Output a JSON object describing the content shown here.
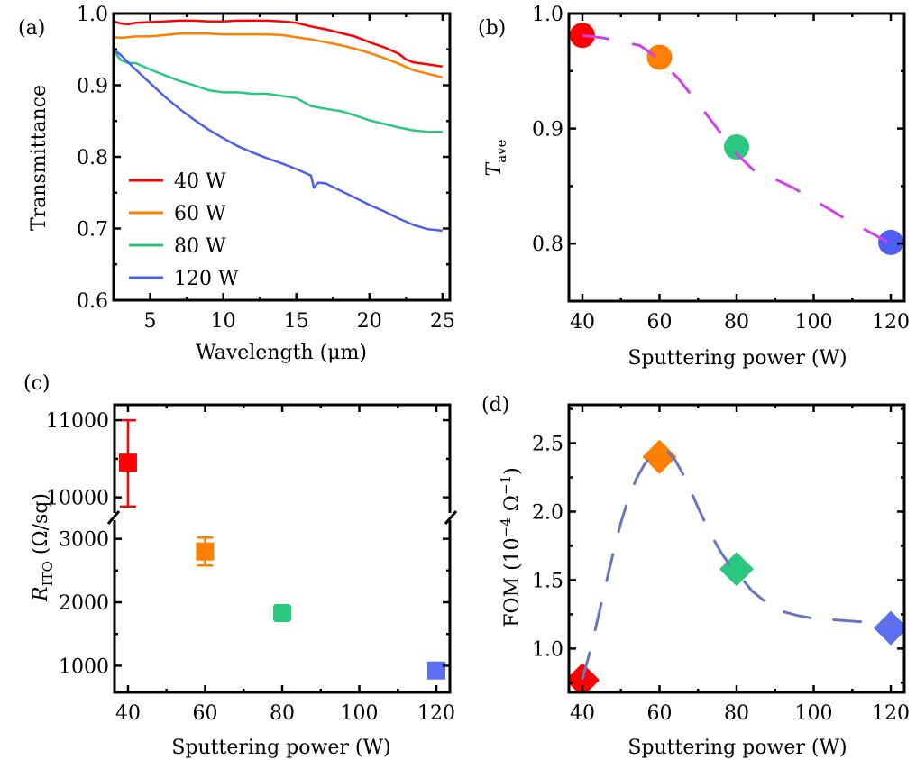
{
  "chart_data": [
    {
      "id": "a",
      "panel_label": "(a)",
      "type": "line",
      "xlabel": "Wavelength (μm)",
      "ylabel": "Transmittance",
      "xlim": [
        2.5,
        25.5
      ],
      "ylim": [
        0.6,
        1.0
      ],
      "xticks": [
        5,
        10,
        15,
        20,
        25
      ],
      "xtick_labels": [
        "5",
        "10",
        "15",
        "20",
        "25"
      ],
      "yticks": [
        0.6,
        0.7,
        0.8,
        0.9,
        1.0
      ],
      "ytick_labels": [
        "0.6",
        "0.7",
        "0.8",
        "0.9",
        "1.0"
      ],
      "legend_position": "bottom-left",
      "series": [
        {
          "name": "40 W",
          "color": "#ff0000",
          "x": [
            2.5,
            3.0,
            3.5,
            4.0,
            5,
            6,
            7,
            8,
            9,
            10,
            11,
            12,
            13,
            14,
            15,
            16,
            17,
            18,
            19,
            20,
            21,
            22,
            22.5,
            23,
            24,
            25
          ],
          "y": [
            0.989,
            0.986,
            0.985,
            0.987,
            0.988,
            0.989,
            0.99,
            0.99,
            0.989,
            0.989,
            0.99,
            0.99,
            0.99,
            0.989,
            0.987,
            0.982,
            0.978,
            0.973,
            0.968,
            0.96,
            0.953,
            0.944,
            0.936,
            0.932,
            0.929,
            0.926
          ]
        },
        {
          "name": "60 W",
          "color": "#ff7f00",
          "x": [
            2.5,
            3.0,
            3.5,
            4.0,
            5,
            6,
            7,
            8,
            9,
            10,
            11,
            12,
            13,
            14,
            15,
            16,
            17,
            18,
            19,
            20,
            21,
            22,
            23,
            24,
            25
          ],
          "y": [
            0.967,
            0.966,
            0.967,
            0.968,
            0.968,
            0.97,
            0.972,
            0.972,
            0.972,
            0.971,
            0.971,
            0.971,
            0.971,
            0.97,
            0.967,
            0.964,
            0.96,
            0.956,
            0.951,
            0.945,
            0.938,
            0.93,
            0.921,
            0.916,
            0.911
          ]
        },
        {
          "name": "80 W",
          "color": "#2ac87e",
          "x": [
            2.5,
            3.0,
            3.5,
            4.0,
            5,
            6,
            7,
            8,
            9,
            10,
            11,
            12,
            13,
            14,
            15,
            16,
            17,
            18,
            19,
            20,
            21,
            22,
            23,
            24,
            25
          ],
          "y": [
            0.948,
            0.935,
            0.931,
            0.931,
            0.922,
            0.914,
            0.906,
            0.9,
            0.893,
            0.89,
            0.89,
            0.888,
            0.888,
            0.885,
            0.882,
            0.871,
            0.867,
            0.864,
            0.858,
            0.851,
            0.846,
            0.841,
            0.837,
            0.835,
            0.835
          ]
        },
        {
          "name": "120 W",
          "color": "#4e5ef5",
          "x": [
            2.5,
            3.0,
            3.5,
            4.0,
            5,
            6,
            7,
            8,
            9,
            10,
            11,
            12,
            13,
            14,
            15,
            16,
            16.2,
            16.5,
            17,
            18,
            19,
            20,
            21,
            22,
            23,
            24,
            25
          ],
          "y": [
            0.95,
            0.942,
            0.932,
            0.922,
            0.903,
            0.884,
            0.867,
            0.852,
            0.838,
            0.826,
            0.815,
            0.806,
            0.798,
            0.791,
            0.783,
            0.774,
            0.757,
            0.764,
            0.763,
            0.753,
            0.743,
            0.733,
            0.724,
            0.714,
            0.705,
            0.699,
            0.697
          ]
        }
      ]
    },
    {
      "id": "b",
      "panel_label": "(b)",
      "type": "scatter",
      "xlabel": "Sputtering power (W)",
      "ylabel": "T",
      "ylabel_sub": "ave",
      "xlim": [
        36.5,
        123.5
      ],
      "ylim": [
        0.75,
        1.0
      ],
      "xticks": [
        40,
        60,
        80,
        100,
        120
      ],
      "xtick_labels": [
        "40",
        "60",
        "80",
        "100",
        "120"
      ],
      "yticks": [
        0.8,
        0.9,
        1.0
      ],
      "ytick_labels": [
        "0.8",
        "0.9",
        "1.0"
      ],
      "x": [
        40,
        60,
        80,
        120
      ],
      "y": [
        0.981,
        0.962,
        0.884,
        0.801
      ],
      "colors": [
        "#ff0000",
        "#ff7f00",
        "#2ac87e",
        "#4e5ef5"
      ],
      "fit": {
        "style": "dashed",
        "color": "#d43fec",
        "x": [
          40,
          45,
          50,
          55,
          60,
          65,
          70,
          75,
          80,
          85,
          90,
          95,
          100,
          105,
          110,
          115,
          120
        ],
        "y": [
          0.981,
          0.979,
          0.976,
          0.972,
          0.96,
          0.943,
          0.922,
          0.9,
          0.878,
          0.862,
          0.856,
          0.848,
          0.838,
          0.828,
          0.818,
          0.809,
          0.8
        ]
      }
    },
    {
      "id": "c",
      "panel_label": "(c)",
      "type": "scatter",
      "xlabel": "Sputtering power (W)",
      "ylabel": "R",
      "ylabel_sub": "ITO",
      "ylabel_unit": " (Ω/sq)",
      "xlim": [
        36.5,
        123.5
      ],
      "broken_axis": true,
      "ylim_lower": [
        580,
        3350
      ],
      "ylim_upper": [
        9750,
        11200
      ],
      "xticks": [
        40,
        60,
        80,
        100,
        120
      ],
      "xtick_labels": [
        "40",
        "60",
        "80",
        "100",
        "120"
      ],
      "yticks_lower": [
        1000,
        2000,
        3000
      ],
      "ytick_labels_lower": [
        "1000",
        "2000",
        "3000"
      ],
      "yticks_upper": [
        10000,
        11000
      ],
      "ytick_labels_upper": [
        "10000",
        "11000"
      ],
      "x": [
        40,
        60,
        80,
        120
      ],
      "y": [
        10450,
        2800,
        1830,
        925
      ],
      "yerr_low": [
        9880,
        2580,
        1760,
        870
      ],
      "yerr_high": [
        11000,
        3020,
        1900,
        980
      ],
      "colors": [
        "#ff0000",
        "#ff7f00",
        "#2ac87e",
        "#5b6ff0"
      ]
    },
    {
      "id": "d",
      "panel_label": "(d)",
      "type": "scatter",
      "xlabel": "Sputtering power (W)",
      "ylabel": "FOM (10",
      "ylabel_sup": "−4",
      "ylabel_mid": " Ω",
      "ylabel_sup2": "−1",
      "ylabel_end": ")",
      "xlim": [
        36.5,
        123.5
      ],
      "ylim": [
        0.68,
        2.78
      ],
      "xticks": [
        40,
        60,
        80,
        100,
        120
      ],
      "xtick_labels": [
        "40",
        "60",
        "80",
        "100",
        "120"
      ],
      "yticks": [
        1.0,
        1.5,
        2.0,
        2.5
      ],
      "ytick_labels": [
        "1.0",
        "1.5",
        "2.0",
        "2.5"
      ],
      "x": [
        40,
        60,
        80,
        120
      ],
      "y": [
        0.77,
        2.4,
        1.58,
        1.15
      ],
      "colors": [
        "#ff0000",
        "#ff7f00",
        "#2ac87e",
        "#5b6ff0"
      ],
      "fit": {
        "style": "dashed",
        "color": "#6b74c0",
        "x": [
          40,
          42,
          44,
          46,
          48,
          50,
          52,
          54,
          56,
          58,
          60,
          62,
          64,
          66,
          68,
          70,
          72,
          74,
          76,
          78,
          80,
          84,
          88,
          92,
          96,
          100,
          105,
          110,
          115,
          120
        ],
        "y": [
          0.78,
          0.98,
          1.22,
          1.46,
          1.7,
          1.92,
          2.1,
          2.24,
          2.34,
          2.41,
          2.43,
          2.44,
          2.38,
          2.28,
          2.16,
          2.03,
          1.91,
          1.8,
          1.7,
          1.62,
          1.56,
          1.42,
          1.33,
          1.27,
          1.24,
          1.22,
          1.21,
          1.2,
          1.19,
          1.18
        ]
      }
    }
  ]
}
